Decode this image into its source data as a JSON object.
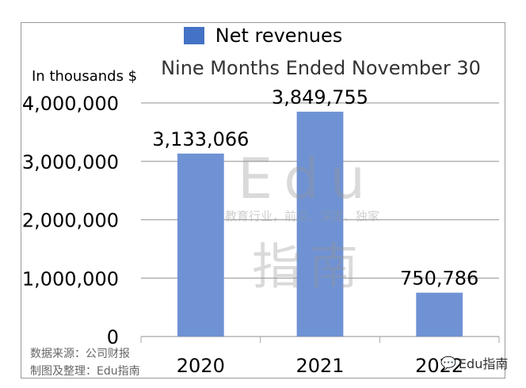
{
  "chart_data": {
    "type": "bar",
    "title": "",
    "subtitle": "Nine Months Ended November 30",
    "ylabel": "In thousands $",
    "xlabel": "",
    "categories": [
      "2020",
      "2021",
      "2022"
    ],
    "series": [
      {
        "name": "Net revenues",
        "values": [
          3133066,
          3849755,
          750786
        ],
        "color": "#6f92d4"
      }
    ],
    "data_labels": [
      "3,133,066",
      "3,849,755",
      "750,786"
    ],
    "ylim": [
      0,
      4000000
    ],
    "yticks": [
      0,
      1000000,
      2000000,
      3000000,
      4000000
    ],
    "ytick_labels": [
      "0",
      "1,000,000",
      "2,000,000",
      "3,000,000",
      "4,000,000"
    ],
    "grid": true,
    "legend_position": "top"
  },
  "legend": {
    "label": "Net revenues",
    "color": "#4472c4"
  },
  "watermark": {
    "edu": "Edu",
    "tagline": "教育行业，前沿、深度、独家",
    "cn": "指南"
  },
  "source": {
    "line1": "数据来源：公司财报",
    "line2": "制图及整理：Edu指南"
  },
  "brand": {
    "icon": "wechat-icon",
    "text": "Edu指南"
  }
}
